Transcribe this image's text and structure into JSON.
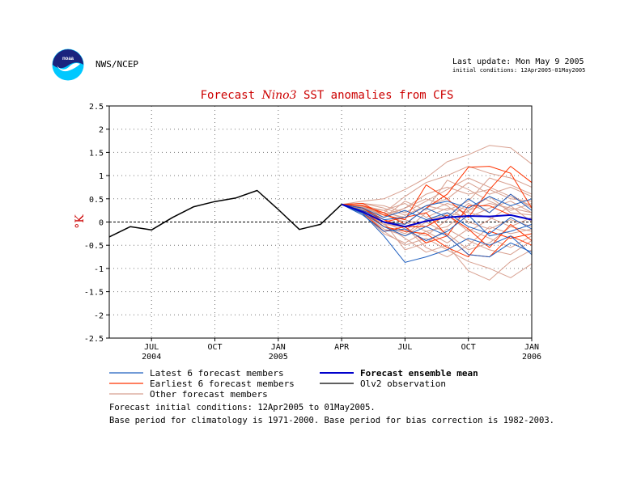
{
  "header": {
    "agency": "NWS/NCEP",
    "last_update": "Last update: Mon May 9 2005",
    "initial_conditions": "initial conditions: 12Apr2005-01May2005",
    "logo_text": "noaa"
  },
  "colors": {
    "title": "#cc0000",
    "latest_members": "#1f5fbf",
    "earliest_members": "#ff3300",
    "other_members": "#d8a090",
    "ensemble_mean": "#0000cc",
    "observation": "#000000"
  },
  "chart_data": {
    "type": "line",
    "title_parts": [
      "Forecast ",
      "Nino3",
      " SST anomalies from CFS"
    ],
    "ylabel": "°K",
    "ylim": [
      -2.5,
      2.5
    ],
    "yticks": [
      2.5,
      2,
      1.5,
      1,
      0.5,
      0,
      -0.5,
      -1,
      -1.5,
      -2,
      -2.5
    ],
    "xlim": [
      0,
      20
    ],
    "x_ticks": [
      {
        "x": 2,
        "label": "JUL",
        "sublabel": "2004"
      },
      {
        "x": 5,
        "label": "OCT",
        "sublabel": ""
      },
      {
        "x": 8,
        "label": "JAN",
        "sublabel": "2005"
      },
      {
        "x": 11,
        "label": "APR",
        "sublabel": ""
      },
      {
        "x": 14,
        "label": "JUL",
        "sublabel": ""
      },
      {
        "x": 17,
        "label": "OCT",
        "sublabel": ""
      },
      {
        "x": 20,
        "label": "JAN",
        "sublabel": "2006"
      }
    ],
    "grid": true,
    "legend": [
      {
        "label": "Latest 6 forecast members",
        "color": "#1f5fbf",
        "bold": false
      },
      {
        "label": "Forecast ensemble mean",
        "color": "#0000cc",
        "bold": true
      },
      {
        "label": "Earliest 6 forecast members",
        "color": "#ff3300",
        "bold": false
      },
      {
        "label": "Olv2 observation",
        "color": "#000000",
        "bold": false
      },
      {
        "label": "Other forecast members",
        "color": "#d8a090",
        "bold": false
      }
    ],
    "observation": {
      "x": [
        0,
        1,
        2,
        3,
        4,
        5,
        6,
        7,
        8,
        9,
        10,
        11
      ],
      "y": [
        -0.32,
        -0.1,
        -0.17,
        0.1,
        0.33,
        0.44,
        0.52,
        0.68,
        0.27,
        -0.16,
        -0.05,
        0.38
      ]
    },
    "forecast_x": [
      11,
      12,
      13,
      14,
      15,
      16,
      17,
      18,
      19,
      20
    ],
    "ensemble_mean": [
      0.38,
      0.22,
      0.0,
      -0.1,
      0.02,
      0.1,
      0.13,
      0.12,
      0.15,
      0.05
    ],
    "latest_members": [
      [
        0.38,
        0.18,
        -0.3,
        -0.87,
        -0.75,
        -0.6,
        -0.35,
        -0.5,
        -0.3,
        -0.7
      ],
      [
        0.38,
        0.25,
        0.05,
        0.1,
        0.35,
        0.45,
        0.3,
        0.55,
        0.35,
        0.5
      ],
      [
        0.38,
        0.2,
        -0.1,
        -0.3,
        -0.1,
        -0.3,
        -0.7,
        -0.75,
        -0.45,
        -0.65
      ],
      [
        0.38,
        0.3,
        0.1,
        0.25,
        0.05,
        0.2,
        -0.1,
        -0.25,
        0.1,
        -0.15
      ],
      [
        0.38,
        0.22,
        0.0,
        -0.05,
        0.3,
        0.1,
        0.5,
        0.2,
        0.6,
        0.25
      ],
      [
        0.38,
        0.15,
        -0.2,
        -0.15,
        -0.4,
        -0.2,
        0.15,
        -0.3,
        -0.2,
        -0.05
      ]
    ],
    "earliest_members": [
      [
        0.38,
        0.35,
        0.2,
        -0.05,
        0.3,
        0.6,
        1.18,
        1.2,
        1.05,
        0.3
      ],
      [
        0.38,
        0.3,
        0.05,
        -0.1,
        -0.45,
        -0.3,
        -0.7,
        -0.75,
        -0.3,
        -0.5
      ],
      [
        0.38,
        0.4,
        0.15,
        0.05,
        0.8,
        0.5,
        0.1,
        0.7,
        1.2,
        0.85
      ],
      [
        0.38,
        0.25,
        -0.1,
        -0.2,
        -0.25,
        -0.55,
        -0.75,
        -0.2,
        -0.35,
        -0.25
      ],
      [
        0.38,
        0.3,
        0.0,
        0.1,
        0.2,
        -0.3,
        0.35,
        0.35,
        0.15,
        0.05
      ],
      [
        0.38,
        0.2,
        -0.2,
        -0.1,
        -0.1,
        0.15,
        -0.15,
        -0.55,
        -0.05,
        -0.4
      ]
    ],
    "other_members": [
      [
        0.38,
        0.45,
        0.5,
        0.7,
        0.95,
        1.3,
        1.45,
        1.65,
        1.6,
        1.25
      ],
      [
        0.38,
        0.3,
        0.2,
        0.55,
        0.85,
        1.0,
        1.2,
        1.05,
        0.95,
        0.75
      ],
      [
        0.38,
        0.35,
        0.1,
        0.3,
        0.6,
        0.75,
        0.6,
        0.7,
        0.5,
        0.45
      ],
      [
        0.38,
        0.4,
        0.3,
        0.15,
        0.35,
        0.5,
        0.85,
        0.6,
        0.75,
        0.55
      ],
      [
        0.38,
        0.25,
        -0.2,
        -0.5,
        -0.35,
        -0.6,
        -0.85,
        -1.0,
        -1.2,
        -0.9
      ],
      [
        0.38,
        0.2,
        -0.05,
        -0.35,
        -0.65,
        -0.5,
        -1.05,
        -1.25,
        -0.85,
        -0.6
      ],
      [
        0.38,
        0.3,
        0.15,
        0.0,
        -0.2,
        -0.1,
        0.25,
        0.4,
        0.3,
        0.2
      ],
      [
        0.38,
        0.35,
        0.25,
        0.4,
        0.1,
        0.3,
        0.2,
        0.1,
        -0.1,
        0.1
      ],
      [
        0.38,
        0.22,
        -0.1,
        -0.25,
        0.05,
        0.15,
        -0.2,
        0.05,
        0.35,
        0.0
      ],
      [
        0.38,
        0.28,
        0.0,
        -0.6,
        -0.45,
        -0.15,
        -0.4,
        -0.6,
        -0.7,
        -0.4
      ],
      [
        0.38,
        0.4,
        0.35,
        0.2,
        0.45,
        0.7,
        0.95,
        0.75,
        0.55,
        0.35
      ],
      [
        0.38,
        0.3,
        0.05,
        -0.15,
        -0.3,
        0.05,
        0.4,
        0.2,
        0.6,
        0.3
      ],
      [
        0.38,
        0.18,
        -0.25,
        -0.45,
        -0.2,
        -0.45,
        -0.15,
        -0.35,
        -0.55,
        -0.3
      ],
      [
        0.38,
        0.32,
        0.2,
        0.1,
        0.35,
        0.25,
        0.45,
        0.95,
        0.8,
        0.6
      ],
      [
        0.38,
        0.24,
        -0.05,
        -0.1,
        -0.55,
        -0.75,
        -0.5,
        -0.1,
        -0.25,
        -0.15
      ],
      [
        0.38,
        0.36,
        0.1,
        0.45,
        0.25,
        0.9,
        0.7,
        0.45,
        0.25,
        0.4
      ],
      [
        0.38,
        0.2,
        -0.15,
        -0.3,
        0.0,
        -0.25,
        -0.6,
        -0.45,
        -0.1,
        -0.2
      ],
      [
        0.38,
        0.3,
        0.25,
        0.05,
        -0.1,
        0.2,
        0.1,
        0.3,
        0.45,
        0.2
      ],
      [
        0.38,
        0.26,
        0.0,
        -0.2,
        0.2,
        0.4,
        0.25,
        0.55,
        0.2,
        0.15
      ],
      [
        0.38,
        0.34,
        0.15,
        0.3,
        0.5,
        0.35,
        0.0,
        -0.15,
        0.05,
        -0.1
      ]
    ]
  },
  "footnotes": {
    "line1": "Forecast initial conditions: 12Apr2005 to 01May2005.",
    "line2": "Base period for climatology is 1971-2000. Base period for bias correction is 1982-2003."
  }
}
